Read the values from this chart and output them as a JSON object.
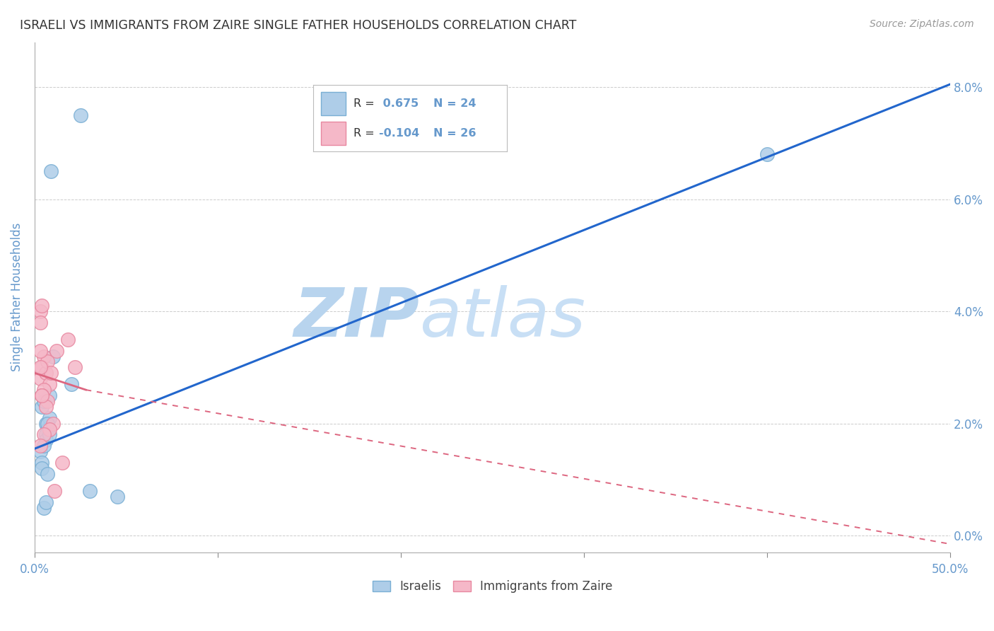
{
  "title": "ISRAELI VS IMMIGRANTS FROM ZAIRE SINGLE FATHER HOUSEHOLDS CORRELATION CHART",
  "source": "Source: ZipAtlas.com",
  "ylabel": "Single Father Households",
  "watermark": "ZIPatlas",
  "yticks": [
    0.0,
    2.0,
    4.0,
    6.0,
    8.0
  ],
  "xticks": [
    0.0,
    10.0,
    20.0,
    30.0,
    40.0,
    50.0
  ],
  "xlim": [
    0.0,
    50.0
  ],
  "ylim": [
    -0.3,
    8.8
  ],
  "blue_scatter_x": [
    2.5,
    0.4,
    0.6,
    0.7,
    0.8,
    0.5,
    0.6,
    1.0,
    2.0,
    0.3,
    0.4,
    0.8,
    0.9,
    0.6,
    0.7,
    0.5,
    0.8,
    0.4,
    0.5,
    0.6,
    0.7,
    40.0,
    4.5,
    3.0
  ],
  "blue_scatter_y": [
    7.5,
    2.3,
    2.0,
    1.9,
    2.1,
    2.4,
    1.8,
    3.2,
    2.7,
    1.5,
    1.3,
    2.5,
    6.5,
    1.7,
    2.0,
    1.6,
    1.8,
    1.2,
    0.5,
    0.6,
    1.1,
    6.8,
    0.7,
    0.8
  ],
  "pink_scatter_x": [
    0.3,
    0.4,
    0.3,
    1.2,
    1.8,
    0.5,
    0.4,
    0.3,
    0.6,
    0.7,
    0.8,
    0.9,
    0.3,
    0.3,
    0.5,
    0.4,
    0.7,
    0.6,
    1.0,
    0.8,
    0.5,
    2.2,
    1.5,
    0.3,
    1.1,
    0.4
  ],
  "pink_scatter_y": [
    4.0,
    4.1,
    3.8,
    3.3,
    3.5,
    3.2,
    3.0,
    2.8,
    2.9,
    3.1,
    2.7,
    2.9,
    3.3,
    3.0,
    2.6,
    2.5,
    2.4,
    2.3,
    2.0,
    1.9,
    1.8,
    3.0,
    1.3,
    1.6,
    0.8,
    2.5
  ],
  "blue_line_x": [
    0.0,
    50.0
  ],
  "blue_line_y": [
    1.55,
    8.05
  ],
  "pink_solid_line_x": [
    0.0,
    2.8
  ],
  "pink_solid_line_y": [
    2.9,
    2.6
  ],
  "pink_dash_line_x": [
    2.8,
    50.0
  ],
  "pink_dash_line_y": [
    2.6,
    -0.15
  ],
  "blue_color": "#aecde8",
  "blue_edge_color": "#7aafd4",
  "blue_line_color": "#2266cc",
  "pink_color": "#f5b8c8",
  "pink_edge_color": "#e888a0",
  "pink_line_color": "#dd6680",
  "bg_color": "#ffffff",
  "grid_color": "#cccccc",
  "title_color": "#333333",
  "axis_label_color": "#6699cc",
  "tick_label_color": "#6699cc",
  "source_color": "#999999",
  "watermark_color": "#cce0f5",
  "legend_label_israelis": "Israelis",
  "legend_label_immigrants": "Immigrants from Zaire",
  "legend_blue_r_val": "0.675",
  "legend_blue_n": "N = 24",
  "legend_pink_r_val": "-0.104",
  "legend_pink_n": "N = 26"
}
